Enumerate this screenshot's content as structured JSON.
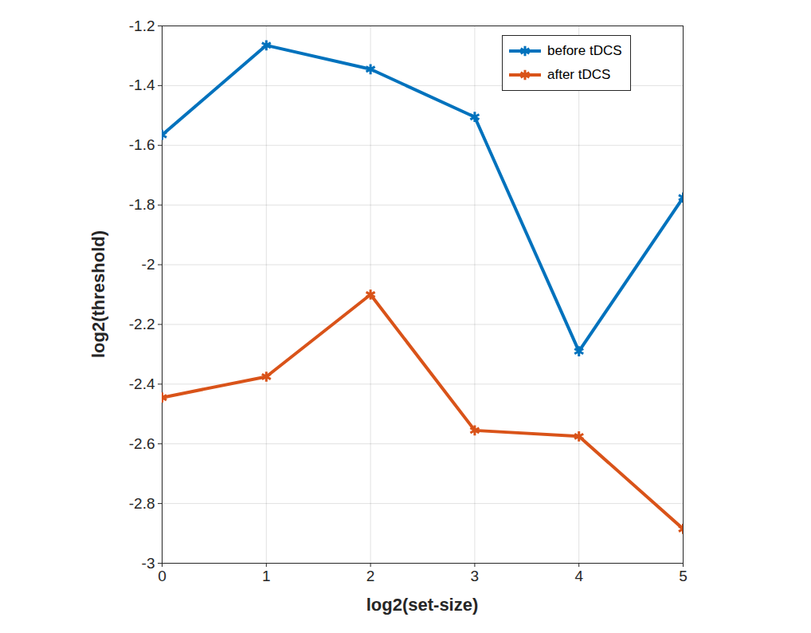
{
  "chart_data": {
    "type": "line",
    "x_label": "log2(set-size)",
    "y_label": "log2(threshold)",
    "x": [
      0,
      1,
      2,
      3,
      4,
      5
    ],
    "series": [
      {
        "name": "before tDCS",
        "color": "#0072BD",
        "values": [
          -1.565,
          -1.265,
          -1.345,
          -1.505,
          -2.29,
          -1.775
        ]
      },
      {
        "name": "after tDCS",
        "color": "#D95319",
        "values": [
          -2.445,
          -2.375,
          -2.1,
          -2.555,
          -2.575,
          -2.885
        ]
      }
    ],
    "xlim": [
      0,
      5
    ],
    "xticks": [
      0,
      1,
      2,
      3,
      4,
      5
    ],
    "ylim": [
      -3,
      -1.2
    ],
    "yticks": [
      -3,
      -2.8,
      -2.6,
      -2.4,
      -2.2,
      -2,
      -1.8,
      -1.6,
      -1.4,
      -1.2
    ],
    "grid": true,
    "legend": "northeast",
    "marker": "asterisk",
    "line_style": "solid"
  }
}
